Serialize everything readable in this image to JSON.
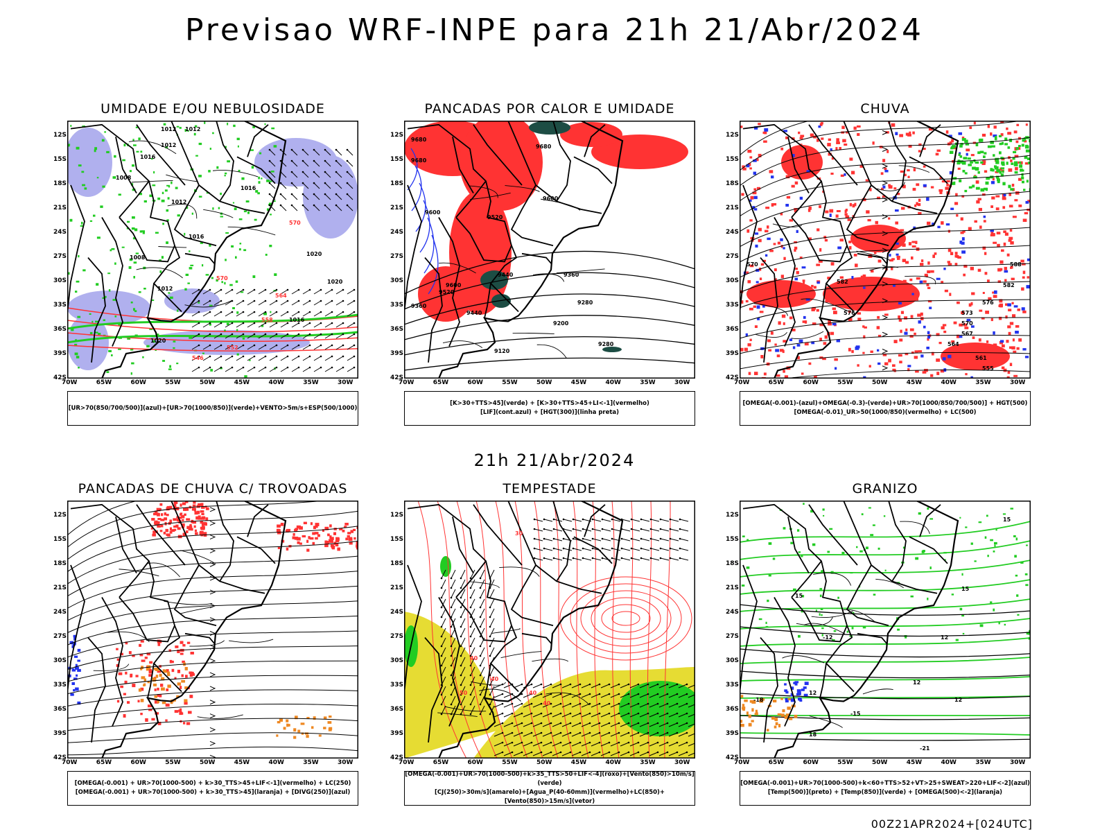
{
  "header": {
    "title": "Previsao WRF-INPE  para 21h 21/Abr/2024"
  },
  "middle_date": "21h 21/Abr/2024",
  "footer": {
    "stamp": "00Z21APR2024+[024UTC]"
  },
  "axes": {
    "lat_labels": [
      "12S",
      "15S",
      "18S",
      "21S",
      "24S",
      "27S",
      "30S",
      "33S",
      "36S",
      "39S",
      "42S"
    ],
    "lon_labels": [
      "70W",
      "65W",
      "60W",
      "55W",
      "50W",
      "45W",
      "40W",
      "35W",
      "30W"
    ]
  },
  "colors": {
    "blue": "#2233ee",
    "green": "#22cc22",
    "red": "#ff3333",
    "lavender": "#b0b0ee",
    "darkgreen": "#1d4d44",
    "yellow": "#e6dc33",
    "orange": "#ee8822"
  },
  "panels": [
    {
      "id": "umidade",
      "title": "UMIDADE E/OU NEBULOSIDADE",
      "legend": [
        "[UR>70(850/700/500)](azul)+[UR>70(1000/850)](verde)+VENTO>5m/s+ESP(500/1000)"
      ],
      "labels": [
        "1012",
        "1012",
        "1012",
        "1016",
        "1008",
        "1016",
        "1012",
        "1016",
        "1008",
        "1020",
        "1020",
        "1012",
        "1016",
        "1020",
        "570",
        "570",
        "564",
        "558",
        "552",
        "546"
      ]
    },
    {
      "id": "pancadas-calor",
      "title": "PANCADAS POR CALOR E UMIDADE",
      "legend": [
        "[K>30+TTS>45](verde) + [K>30+TTS>45+LI<-1](vermelho)",
        "[LIF](cont.azul) + [HGT(300)](linha preta)"
      ],
      "labels": [
        "9680",
        "9680",
        "9680",
        "9600",
        "9600",
        "9520",
        "9440",
        "9360",
        "9280",
        "9200",
        "9120",
        "9280",
        "9600",
        "9520",
        "9440",
        "9360"
      ]
    },
    {
      "id": "chuva",
      "title": "CHUVA",
      "legend": [
        "[OMEGA(-0.001)-(azul)+OMEGA(-0.3)-(verde)+UR>70(1000/850/700/500)] + HGT(500)",
        "[OMEGA(-0.01)_UR>50(1000/850)(vermelho) + LC(500)"
      ],
      "labels": [
        "588",
        "582",
        "576",
        "573",
        "570",
        "567",
        "564",
        "561",
        "555",
        "582",
        "576",
        "570"
      ]
    },
    {
      "id": "trovoadas",
      "title": "PANCADAS DE CHUVA C/ TROVOADAS",
      "legend": [
        "[OMEGA(-0.001) + UR>70(1000-500) + k>30_TTS>45+LIF<-1](vermelho) + LC(250)",
        "[OMEGA(-0.001) + UR>70(1000-500) + k>30_TTS>45](laranja) + [DIVG(250)](azul)"
      ],
      "labels": []
    },
    {
      "id": "tempestade",
      "title": "TEMPESTADE",
      "legend": [
        "[OMEGA(-0.001)+UR>70(1000-500)+k>35_TTS>50+LIF<-4](roxo)+[Vento(850)>10m/s](verde)",
        "[CJ(250)>30m/s](amarelo)+[Agua_P(40-60mm)](vermelho)+LC(850)+[Vento(850)>15m/s](vetor)"
      ],
      "labels": [
        "40",
        "40",
        "50",
        "40",
        "40",
        "30"
      ]
    },
    {
      "id": "granizo",
      "title": "GRANIZO",
      "legend": [
        "[OMEGA(-0.001)+UR>70(1000-500)+k<60+TTS>52+VT>25+SWEAT>220+LIF<-2](azul)",
        "[Temp(500)](preto) + [Temp(850)](verde) + [OMEGA(500)<-2](laranja)"
      ],
      "labels": [
        "15",
        "15",
        "12",
        "12",
        "12",
        "-12",
        "-15",
        "-18",
        "-21",
        "15",
        "12",
        "18"
      ]
    }
  ]
}
